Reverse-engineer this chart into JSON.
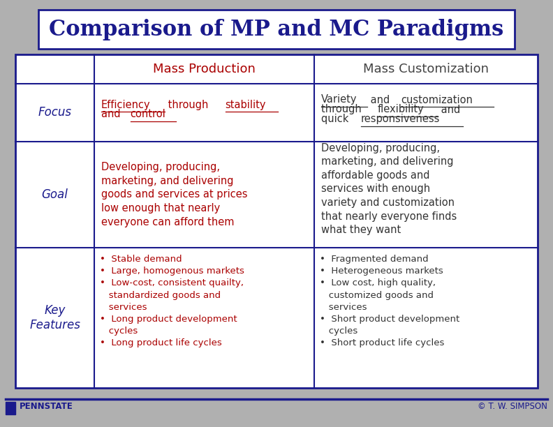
{
  "title": "Comparison of MP and MC Paradigms",
  "title_color": "#1a1a8c",
  "title_fontsize": 22,
  "title_box_color": "#1a1a8c",
  "bg_color": "#b0b0b0",
  "row_label_color": "#1a1a8c",
  "mp_text_color": "#aa0000",
  "mc_text_color": "#333333",
  "cell_border_color": "#1a1a8c",
  "col_headers": [
    "Mass Production",
    "Mass Customization"
  ],
  "col_header_mp_color": "#aa0000",
  "col_header_mc_color": "#444444",
  "row_labels": [
    "Focus",
    "Goal",
    "Key\nFeatures"
  ],
  "mp_focus_underline": [
    "Efficiency",
    "stability",
    "control"
  ],
  "mc_focus_underline": [
    "Variety",
    "customization",
    "flexibility",
    "responsiveness"
  ],
  "mp_focus_lines": [
    [
      "Efficiency",
      " through ",
      "stability"
    ],
    [
      "and ",
      "control"
    ]
  ],
  "mc_focus_lines": [
    [
      "Variety",
      " and ",
      "customization"
    ],
    [
      "through ",
      "flexibility",
      " and"
    ],
    [
      "quick ",
      "responsiveness"
    ]
  ],
  "mp_goal": "Developing, producing,\nmarketing, and delivering\ngoods and services at prices\nlow enough that nearly\neveryone can afford them",
  "mc_goal": "Developing, producing,\nmarketing, and delivering\naffordable goods and\nservices with enough\nvariety and customization\nthat nearly everyone finds\nwhat they want",
  "mp_features": [
    "Stable demand",
    "Large, homogenous markets",
    "Low-cost, consistent quailty,\n   standardized goods and\n   services",
    "Long product development\n   cycles",
    "Long product life cycles"
  ],
  "mc_features": [
    "Fragmented demand",
    "Heterogeneous markets",
    "Low cost, high quality,\n   customized goods and\n   services",
    "Short product development\n   cycles",
    "Short product life cycles"
  ],
  "footer_left": "PENNSTATE",
  "footer_right": "© T. W. SIMPSON",
  "footer_color": "#1a1a8c"
}
